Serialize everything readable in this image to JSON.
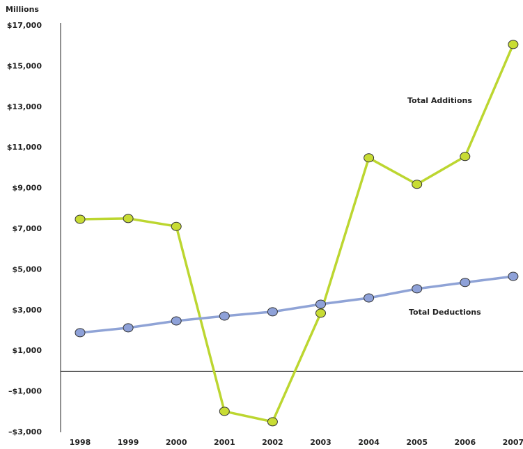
{
  "chart_data": {
    "type": "line",
    "y_axis_label": "Millions",
    "categories": [
      "1998",
      "1999",
      "2000",
      "2001",
      "2002",
      "2003",
      "2004",
      "2005",
      "2006",
      "2007"
    ],
    "series": [
      {
        "name": "Total Additions",
        "color": "#bcd630",
        "marker_color": "#c8dc34",
        "values": [
          7480,
          7520,
          7130,
          -1970,
          -2480,
          2860,
          10500,
          9200,
          10570,
          16080
        ]
      },
      {
        "name": "Total Deductions",
        "color": "#8fa3d6",
        "marker_color": "#8ea1d8",
        "values": [
          1900,
          2140,
          2480,
          2720,
          2930,
          3300,
          3610,
          4060,
          4370,
          4670
        ]
      }
    ],
    "ylim": [
      -3000,
      17000
    ],
    "yticks": [
      {
        "value": 17000,
        "label": "$17,000"
      },
      {
        "value": 15000,
        "label": "$15,000"
      },
      {
        "value": 13000,
        "label": "$13,000"
      },
      {
        "value": 11000,
        "label": "$11,000"
      },
      {
        "value": 9000,
        "label": "$9,000"
      },
      {
        "value": 7000,
        "label": "$7,000"
      },
      {
        "value": 5000,
        "label": "$5,000"
      },
      {
        "value": 3000,
        "label": "$3,000"
      },
      {
        "value": 1000,
        "label": "$1,000"
      },
      {
        "value": -1000,
        "label": "–$1,000"
      },
      {
        "value": -3000,
        "label": "–$3,000"
      }
    ],
    "grid": false
  }
}
